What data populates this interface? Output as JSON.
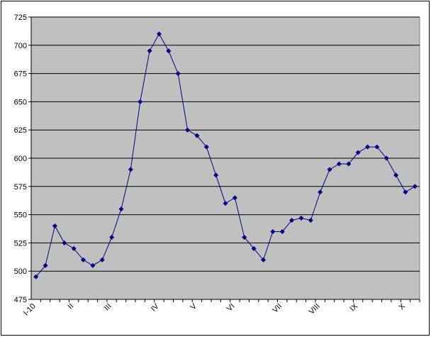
{
  "chart_data": {
    "type": "line",
    "categories": [
      "I-10",
      null,
      null,
      null,
      "II",
      null,
      null,
      null,
      "III",
      null,
      null,
      null,
      null,
      "IV",
      null,
      null,
      null,
      "V",
      null,
      null,
      null,
      "VI",
      null,
      null,
      null,
      null,
      "VII",
      null,
      null,
      null,
      "VIII",
      null,
      null,
      null,
      "IX",
      null,
      null,
      null,
      null,
      "X",
      null
    ],
    "series": [
      {
        "color": "#000080",
        "values": [
          495,
          505,
          540,
          525,
          520,
          510,
          505,
          510,
          530,
          555,
          590,
          650,
          695,
          710,
          695,
          675,
          625,
          620,
          610,
          585,
          560,
          565,
          530,
          520,
          510,
          535,
          535,
          545,
          547,
          545,
          570,
          590,
          595,
          595,
          605,
          610,
          610,
          600,
          585,
          570,
          575
        ]
      }
    ],
    "ylim": [
      475,
      725
    ],
    "yticks": [
      475,
      500,
      525,
      550,
      575,
      600,
      625,
      650,
      675,
      700,
      725
    ],
    "grid": true,
    "plot_background": "#c0c0c0"
  }
}
